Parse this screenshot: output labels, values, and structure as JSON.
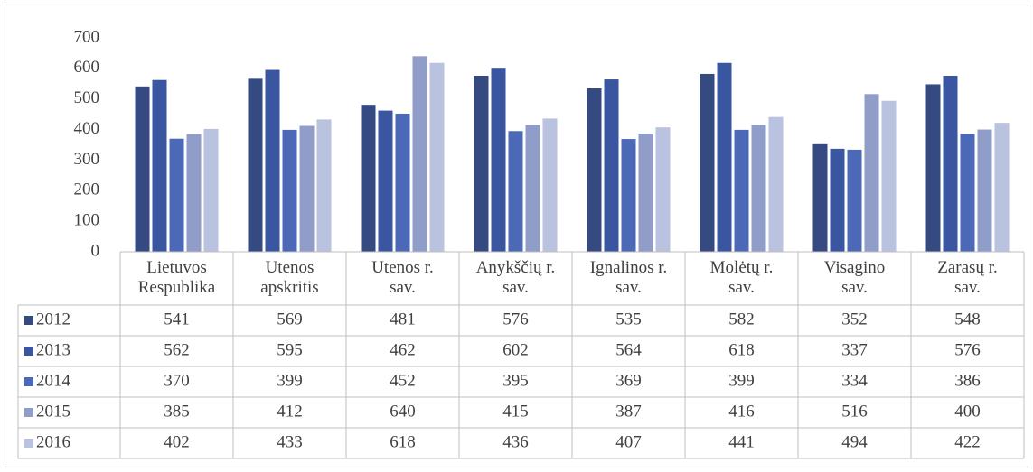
{
  "chart_data": {
    "type": "bar",
    "categories": [
      "Lietuvos\nRespublika",
      "Utenos\napskritis",
      "Utenos r.\nsav.",
      "Anykščių r.\nsav.",
      "Ignalinos r.\nsav.",
      "Molėtų r.\nsav.",
      "Visagino\nsav.",
      "Zarasų r.\nsav."
    ],
    "series": [
      {
        "name": "2012",
        "color": "#344a80",
        "values": [
          541,
          569,
          481,
          576,
          535,
          582,
          352,
          548
        ]
      },
      {
        "name": "2013",
        "color": "#3b56a0",
        "values": [
          562,
          595,
          462,
          602,
          564,
          618,
          337,
          576
        ]
      },
      {
        "name": "2014",
        "color": "#4b69b6",
        "values": [
          370,
          399,
          452,
          395,
          369,
          399,
          334,
          386
        ]
      },
      {
        "name": "2015",
        "color": "#8f9dc8",
        "values": [
          385,
          412,
          640,
          415,
          387,
          416,
          516,
          400
        ]
      },
      {
        "name": "2016",
        "color": "#b9c2de",
        "values": [
          402,
          433,
          618,
          436,
          407,
          441,
          494,
          422
        ]
      }
    ],
    "ylim": [
      0,
      700
    ],
    "yticks": [
      0,
      100,
      200,
      300,
      400,
      500,
      600,
      700
    ],
    "grid": false
  }
}
